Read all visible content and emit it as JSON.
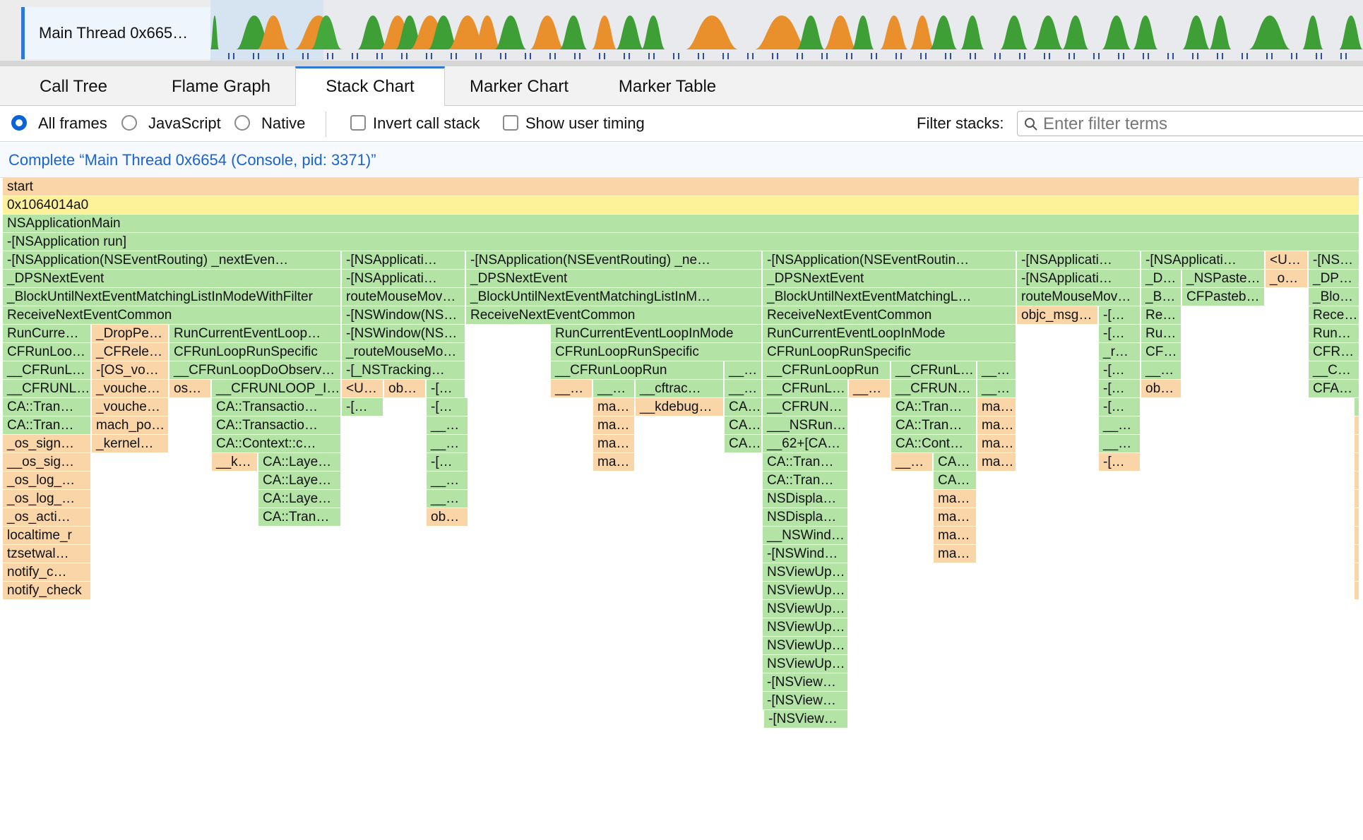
{
  "track": {
    "label": "Main Thread 0x665…",
    "icons": [
      "activity-graph"
    ]
  },
  "tabs": [
    {
      "label": "Call Tree",
      "selected": false
    },
    {
      "label": "Flame Graph",
      "selected": false
    },
    {
      "label": "Stack Chart",
      "selected": true
    },
    {
      "label": "Marker Chart",
      "selected": false
    },
    {
      "label": "Marker Table",
      "selected": false
    }
  ],
  "settings": {
    "all_frames": "All frames",
    "javascript": "JavaScript",
    "native": "Native",
    "selected_frames": "All frames",
    "invert": "Invert call stack",
    "invert_checked": false,
    "user_timing": "Show user timing",
    "user_timing_checked": false,
    "filter_label": "Filter stacks:",
    "filter_placeholder": "Enter filter terms",
    "filter_value": ""
  },
  "breadcrumb": "Complete “Main Thread 0x6654 (Console, pid: 3371)”",
  "colors": {
    "js_green": "#b4e3a6",
    "native_orange": "#fad5a7",
    "root_yellow": "#fdf29a",
    "accent": "#2f78d6"
  },
  "stack_rows": [
    [
      "start"
    ],
    [
      "0x1064014a0"
    ],
    [
      "NSApplicationMain"
    ],
    [
      "-[NSApplication run]"
    ],
    [
      "-[NSApplication(NSEventRouting) _nextEven…",
      "-[NSApplicati…",
      "-[NSApplication(NSEventRouting) _ne…",
      "-[NSApplication(NSEventRoutin…",
      "-[NSApplicati…",
      "-[NSApplicati…",
      "<U…",
      "-[NS…"
    ],
    [
      "_DPSNextEvent",
      "-[NSApplicati…",
      "_DPSNextEvent",
      "_DPSNextEvent",
      "-[NSApplicati…",
      "_D…",
      "_NSPaste…",
      "_o…",
      "_DPS…"
    ],
    [
      "_BlockUntilNextEventMatchingListInModeWithFilter",
      "routeMouseMov…",
      "_BlockUntilNextEventMatchingListInM…",
      "_BlockUntilNextEventMatchingL…",
      "routeMouseMov…",
      "_B…",
      "CFPasteb…",
      "_Blo…"
    ],
    [
      "ReceiveNextEventCommon",
      "-[NSWindow(NS…",
      "ReceiveNextEventCommon",
      "ReceiveNextEventCommon",
      "objc_msg…",
      "-[…",
      "Re…",
      "Rece…"
    ],
    [
      "RunCurre…",
      "_DropPe…",
      "RunCurrentEventLoop…",
      "-[NSWindow(NS…",
      "RunCurrentEventLoopInMode",
      "RunCurrentEventLoopInMode",
      "-[…",
      "Ru…",
      "RunC…"
    ],
    [
      "CFRunLoo…",
      "_CFRele…",
      "CFRunLoopRunSpecific",
      "_routeMouseMo…",
      "CFRunLoopRunSpecific",
      "CFRunLoopRunSpecific",
      "-[…",
      "_r…",
      "CF…",
      "CFRu…"
    ],
    [
      "__CFRunL…",
      "-[OS_vo…",
      "__CFRunLoopDoObserv…",
      "-[_NSTracking…",
      "__CFRunLoopRun",
      "__…",
      "__CFRunLoopRun",
      "__CFRunL…",
      "__…",
      "-[…",
      "__…",
      "__C…"
    ],
    [
      "__CFRUNL…",
      "_vouche…",
      "os…",
      "__CFRUNLOOP_IS…",
      "<U…",
      "ob…",
      "-[…",
      "__…",
      "__…",
      "__cftrac…",
      "__…",
      "__CFRunL…",
      "__…",
      "__CFRUNL…",
      "__…",
      "-[…",
      "ob…",
      "CFA…"
    ],
    [
      "CA::Tran…",
      "_vouche…",
      "CA::Transactio…",
      "-[…",
      "-[…",
      "ma…",
      "__kdebug…",
      "CA…",
      "__CFRUNL…",
      "CA::Tran…",
      "ma…",
      "-[…"
    ],
    [
      "CA::Tran…",
      "mach_po…",
      "CA::Transactio…",
      "__…",
      "ma…",
      "CA…",
      "___NSRun…",
      "CA::Tran…",
      "ma…",
      "__…"
    ],
    [
      "_os_sign…",
      "_kernel…",
      "CA::Context::c…",
      "__…",
      "ma…",
      "CA…",
      "__62+[CA…",
      "CA::Cont…",
      "ma…",
      "__…"
    ],
    [
      "__os_sig…",
      "__k…",
      "CA::Laye…",
      "-[…",
      "ma…",
      "CA::Tran…",
      "__…",
      "CA…",
      "ma…",
      "-[…"
    ],
    [
      "_os_log_…",
      "CA::Laye…",
      "__…",
      "CA::Tran…",
      "CA…"
    ],
    [
      "_os_log_…",
      "CA::Laye…",
      "__…",
      "NSDispla…",
      "ma…"
    ],
    [
      "_os_acti…",
      "CA::Tran…",
      "ob…",
      "NSDispla…",
      "ma…"
    ],
    [
      "localtime_r",
      "__NSWind…",
      "ma…"
    ],
    [
      "tzsetwal…",
      "-[NSWind…",
      "ma…"
    ],
    [
      "notify_c…",
      "NSViewUp…"
    ],
    [
      "notify_check",
      "NSViewUp…"
    ],
    [
      "NSViewUp…"
    ],
    [
      "NSViewUp…"
    ],
    [
      "NSViewUp…"
    ],
    [
      "NSViewUp…"
    ],
    [
      "-[NSView…"
    ],
    [
      "-[NSView…"
    ],
    [
      "-[NSView…"
    ]
  ]
}
